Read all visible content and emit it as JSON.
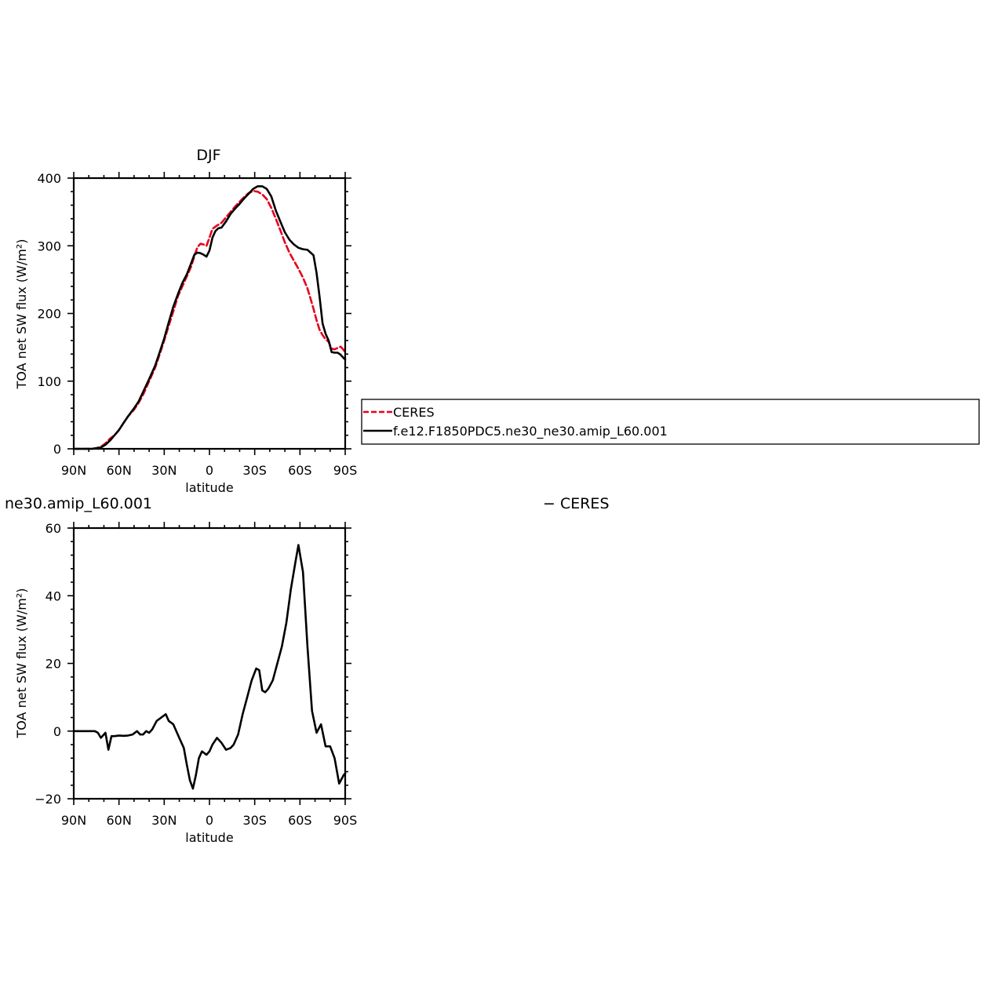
{
  "chart_data": [
    {
      "type": "line",
      "title": "DJF",
      "xlabel": "latitude",
      "ylabel": "TOA net SW flux (W/m²)",
      "xlim": [
        90,
        -90
      ],
      "ylim": [
        0,
        400
      ],
      "x_ticks": [
        90,
        60,
        30,
        0,
        -30,
        -60,
        -90
      ],
      "x_tick_labels": [
        "90N",
        "60N",
        "30N",
        "0",
        "30S",
        "60S",
        "90S"
      ],
      "y_ticks": [
        0,
        100,
        200,
        300,
        400
      ],
      "y_tick_labels": [
        "0",
        "100",
        "200",
        "300",
        "400"
      ],
      "grid": false,
      "legend": {
        "placement": "right",
        "entries": [
          "CERES",
          "f.e12.F1850PDC5.ne30_ne30.amip_L60.001"
        ]
      },
      "series": [
        {
          "name": "CERES",
          "color": "#e8001c",
          "dash": "dashed",
          "points": [
            [
              90,
              0
            ],
            [
              86,
              0
            ],
            [
              82,
              0
            ],
            [
              78,
              0
            ],
            [
              75,
              1
            ],
            [
              72,
              3
            ],
            [
              69,
              8
            ],
            [
              66,
              15
            ],
            [
              63,
              20
            ],
            [
              60,
              28
            ],
            [
              57,
              38
            ],
            [
              54,
              48
            ],
            [
              50,
              58
            ],
            [
              47,
              68
            ],
            [
              44,
              80
            ],
            [
              40,
              100
            ],
            [
              36,
              120
            ],
            [
              33,
              140
            ],
            [
              30,
              160
            ],
            [
              27,
              182
            ],
            [
              24,
              203
            ],
            [
              21,
              225
            ],
            [
              18,
              240
            ],
            [
              15,
              255
            ],
            [
              12,
              270
            ],
            [
              10,
              285
            ],
            [
              8,
              298
            ],
            [
              6,
              303
            ],
            [
              4,
              302
            ],
            [
              2,
              300
            ],
            [
              0,
              312
            ],
            [
              -2,
              325
            ],
            [
              -5,
              330
            ],
            [
              -8,
              334
            ],
            [
              -11,
              342
            ],
            [
              -14,
              350
            ],
            [
              -17,
              358
            ],
            [
              -20,
              365
            ],
            [
              -23,
              372
            ],
            [
              -26,
              378
            ],
            [
              -29,
              381
            ],
            [
              -32,
              380
            ],
            [
              -35,
              376
            ],
            [
              -38,
              369
            ],
            [
              -41,
              356
            ],
            [
              -44,
              340
            ],
            [
              -47,
              323
            ],
            [
              -50,
              305
            ],
            [
              -53,
              290
            ],
            [
              -56,
              278
            ],
            [
              -59,
              266
            ],
            [
              -62,
              253
            ],
            [
              -65,
              237
            ],
            [
              -67,
              222
            ],
            [
              -69,
              207
            ],
            [
              -71,
              190
            ],
            [
              -73,
              176
            ],
            [
              -75,
              168
            ],
            [
              -77,
              162
            ],
            [
              -79,
              158
            ],
            [
              -81,
              148
            ],
            [
              -83,
              147
            ],
            [
              -85,
              149
            ],
            [
              -87,
              151
            ],
            [
              -89,
              146
            ],
            [
              -90,
              142
            ]
          ]
        },
        {
          "name": "f.e12.F1850PDC5.ne30_ne30.amip_L60.001",
          "color": "#000000",
          "dash": "solid",
          "points": [
            [
              90,
              0
            ],
            [
              86,
              0
            ],
            [
              82,
              0
            ],
            [
              78,
              0
            ],
            [
              75,
              1
            ],
            [
              72,
              2
            ],
            [
              69,
              6
            ],
            [
              66,
              12
            ],
            [
              63,
              20
            ],
            [
              60,
              28
            ],
            [
              57,
              38
            ],
            [
              54,
              48
            ],
            [
              50,
              60
            ],
            [
              47,
              70
            ],
            [
              44,
              84
            ],
            [
              40,
              103
            ],
            [
              36,
              123
            ],
            [
              33,
              143
            ],
            [
              30,
              163
            ],
            [
              27,
              187
            ],
            [
              24,
              210
            ],
            [
              21,
              228
            ],
            [
              18,
              245
            ],
            [
              15,
              258
            ],
            [
              12,
              275
            ],
            [
              10,
              287
            ],
            [
              8,
              290
            ],
            [
              6,
              289
            ],
            [
              4,
              287
            ],
            [
              2,
              284
            ],
            [
              0,
              293
            ],
            [
              -2,
              312
            ],
            [
              -4,
              322
            ],
            [
              -6,
              326
            ],
            [
              -8,
              327
            ],
            [
              -11,
              336
            ],
            [
              -14,
              347
            ],
            [
              -17,
              355
            ],
            [
              -20,
              362
            ],
            [
              -23,
              370
            ],
            [
              -26,
              377
            ],
            [
              -29,
              384
            ],
            [
              -32,
              388
            ],
            [
              -35,
              388
            ],
            [
              -38,
              384
            ],
            [
              -41,
              373
            ],
            [
              -44,
              352
            ],
            [
              -47,
              336
            ],
            [
              -50,
              320
            ],
            [
              -53,
              309
            ],
            [
              -56,
              302
            ],
            [
              -59,
              297
            ],
            [
              -62,
              295
            ],
            [
              -65,
              294
            ],
            [
              -67,
              290
            ],
            [
              -69,
              286
            ],
            [
              -71,
              260
            ],
            [
              -73,
              225
            ],
            [
              -75,
              185
            ],
            [
              -77,
              170
            ],
            [
              -79,
              160
            ],
            [
              -81,
              143
            ],
            [
              -83,
              142
            ],
            [
              -85,
              142
            ],
            [
              -87,
              139
            ],
            [
              -89,
              134
            ],
            [
              -90,
              132
            ]
          ]
        }
      ]
    },
    {
      "type": "line",
      "title": "ne30.amip_L60.001",
      "title_right": "− CERES",
      "xlabel": "latitude",
      "ylabel": "TOA net SW flux (W/m²)",
      "xlim": [
        90,
        -90
      ],
      "ylim": [
        -20,
        60
      ],
      "x_ticks": [
        90,
        60,
        30,
        0,
        -30,
        -60,
        -90
      ],
      "x_tick_labels": [
        "90N",
        "60N",
        "30N",
        "0",
        "30S",
        "60S",
        "90S"
      ],
      "y_ticks": [
        -20,
        0,
        20,
        40,
        60
      ],
      "y_tick_labels": [
        "−20",
        "0",
        "20",
        "40",
        "60"
      ],
      "grid": false,
      "series": [
        {
          "color": "#000000",
          "dash": "solid",
          "points": [
            [
              90,
              0
            ],
            [
              85,
              0
            ],
            [
              80,
              0
            ],
            [
              76,
              0
            ],
            [
              74,
              -0.5
            ],
            [
              72,
              -2
            ],
            [
              69,
              -0.5
            ],
            [
              67,
              -5.5
            ],
            [
              65,
              -1.5
            ],
            [
              63,
              -1.5
            ],
            [
              60,
              -1.3
            ],
            [
              57,
              -1.4
            ],
            [
              54,
              -1.3
            ],
            [
              51,
              -1
            ],
            [
              48,
              0
            ],
            [
              46,
              -1
            ],
            [
              44,
              -1
            ],
            [
              42,
              0
            ],
            [
              40,
              -0.5
            ],
            [
              38,
              0.5
            ],
            [
              35,
              3
            ],
            [
              32,
              4
            ],
            [
              29,
              5
            ],
            [
              27,
              3
            ],
            [
              24,
              2
            ],
            [
              21,
              -1
            ],
            [
              17,
              -5
            ],
            [
              15,
              -10
            ],
            [
              13,
              -14.5
            ],
            [
              11,
              -17
            ],
            [
              9,
              -13
            ],
            [
              7,
              -8
            ],
            [
              5,
              -6
            ],
            [
              2,
              -7
            ],
            [
              0,
              -6
            ],
            [
              -2,
              -4
            ],
            [
              -5,
              -2
            ],
            [
              -8,
              -3.5
            ],
            [
              -11,
              -5.5
            ],
            [
              -14,
              -5
            ],
            [
              -16,
              -4
            ],
            [
              -19,
              -1
            ],
            [
              -22,
              5
            ],
            [
              -25,
              10
            ],
            [
              -28,
              15
            ],
            [
              -31,
              18.5
            ],
            [
              -33,
              18
            ],
            [
              -35,
              12
            ],
            [
              -37,
              11.5
            ],
            [
              -39,
              12.5
            ],
            [
              -42,
              15
            ],
            [
              -45,
              20
            ],
            [
              -48,
              25
            ],
            [
              -51,
              32
            ],
            [
              -54,
              42
            ],
            [
              -57,
              50
            ],
            [
              -59,
              55
            ],
            [
              -62,
              47
            ],
            [
              -65,
              25
            ],
            [
              -68,
              6
            ],
            [
              -71,
              -0.5
            ],
            [
              -74,
              2
            ],
            [
              -77,
              -4.5
            ],
            [
              -80,
              -4.5
            ],
            [
              -83,
              -8
            ],
            [
              -86,
              -15.5
            ],
            [
              -89,
              -13
            ],
            [
              -90,
              -12.5
            ]
          ]
        }
      ]
    }
  ]
}
